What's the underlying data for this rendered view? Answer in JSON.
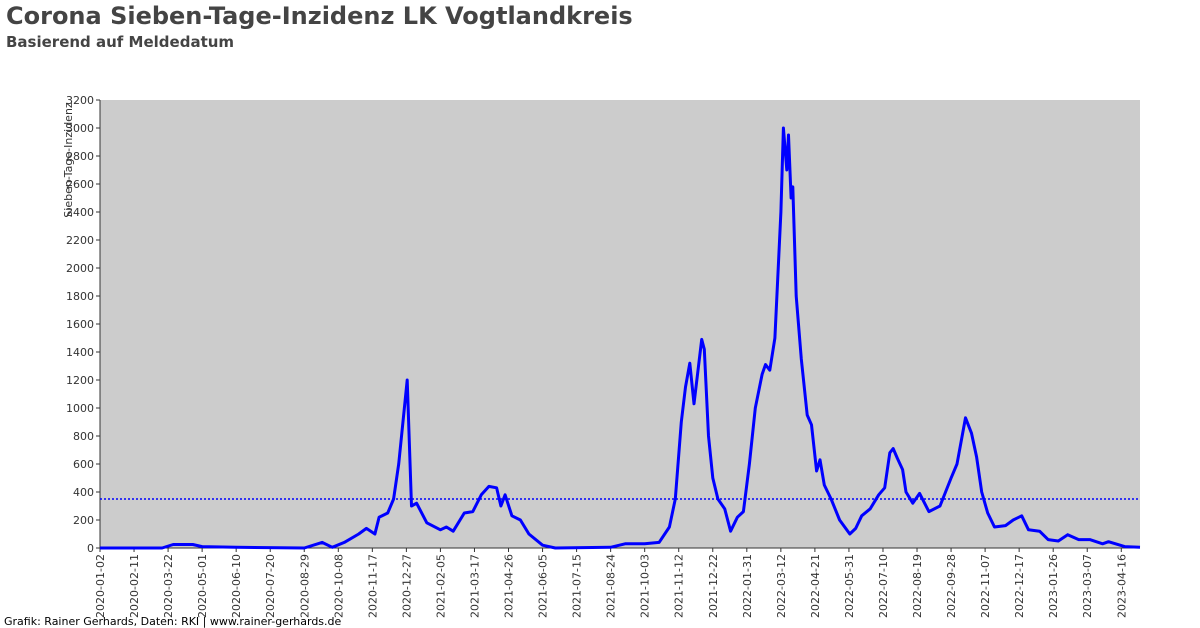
{
  "chart_data": {
    "type": "line",
    "title": "Corona Sieben-Tage-Inzidenz LK Vogtlandkreis",
    "subtitle": "Basierend auf Meldedatum",
    "y_label": "Sieben-Tage-Inzidenz",
    "footer": "Grafik: Rainer Gerhards, Daten: RKI | www.rainer-gerhards.de",
    "xlim": [
      "2020-01-02",
      "2023-05-08"
    ],
    "xticks": [
      "2020-01-02",
      "2020-02-11",
      "2020-03-22",
      "2020-05-01",
      "2020-06-10",
      "2020-07-20",
      "2020-08-29",
      "2020-10-08",
      "2020-11-17",
      "2020-12-27",
      "2021-02-05",
      "2021-03-17",
      "2021-04-26",
      "2021-06-05",
      "2021-07-15",
      "2021-08-24",
      "2021-10-03",
      "2021-11-12",
      "2021-12-22",
      "2022-01-31",
      "2022-03-12",
      "2022-04-21",
      "2022-05-31",
      "2022-07-10",
      "2022-08-19",
      "2022-09-28",
      "2022-11-07",
      "2022-12-17",
      "2023-01-26",
      "2023-03-07",
      "2023-04-16"
    ],
    "ylim": [
      0,
      3200
    ],
    "yticks": [
      0,
      200,
      400,
      600,
      800,
      1000,
      1200,
      1400,
      1600,
      1800,
      2000,
      2200,
      2400,
      2600,
      2800,
      3000,
      3200
    ],
    "threshold": 350,
    "threshold_color": "#0000ff",
    "background": "#cccccc",
    "x": [
      "2020-01-02",
      "2020-03-15",
      "2020-03-28",
      "2020-04-20",
      "2020-05-01",
      "2020-06-10",
      "2020-08-29",
      "2020-09-19",
      "2020-10-01",
      "2020-10-15",
      "2020-11-01",
      "2020-11-10",
      "2020-11-20",
      "2020-11-25",
      "2020-12-05",
      "2020-12-12",
      "2020-12-18",
      "2020-12-28",
      "2021-01-02",
      "2021-01-08",
      "2021-01-20",
      "2021-02-05",
      "2021-02-12",
      "2021-02-20",
      "2021-03-05",
      "2021-03-15",
      "2021-03-25",
      "2021-04-03",
      "2021-04-12",
      "2021-04-17",
      "2021-04-22",
      "2021-04-30",
      "2021-05-10",
      "2021-05-20",
      "2021-06-05",
      "2021-06-20",
      "2021-08-24",
      "2021-09-10",
      "2021-10-03",
      "2021-10-20",
      "2021-11-01",
      "2021-11-08",
      "2021-11-15",
      "2021-11-20",
      "2021-11-25",
      "2021-11-30",
      "2021-12-09",
      "2021-12-12",
      "2021-12-17",
      "2021-12-22",
      "2021-12-28",
      "2022-01-05",
      "2022-01-12",
      "2022-01-20",
      "2022-01-27",
      "2022-02-03",
      "2022-02-10",
      "2022-02-18",
      "2022-02-22",
      "2022-02-27",
      "2022-03-05",
      "2022-03-12",
      "2022-03-15",
      "2022-03-19",
      "2022-03-21",
      "2022-03-24",
      "2022-03-26",
      "2022-03-30",
      "2022-04-05",
      "2022-04-12",
      "2022-04-17",
      "2022-04-23",
      "2022-04-27",
      "2022-05-02",
      "2022-05-10",
      "2022-05-20",
      "2022-06-01",
      "2022-06-08",
      "2022-06-15",
      "2022-06-25",
      "2022-07-05",
      "2022-07-12",
      "2022-07-18",
      "2022-07-22",
      "2022-07-27",
      "2022-08-02",
      "2022-08-06",
      "2022-08-14",
      "2022-08-22",
      "2022-09-02",
      "2022-09-15",
      "2022-09-28",
      "2022-10-05",
      "2022-10-15",
      "2022-10-22",
      "2022-10-28",
      "2022-11-03",
      "2022-11-10",
      "2022-11-18",
      "2022-12-01",
      "2022-12-10",
      "2022-12-20",
      "2022-12-28",
      "2023-01-10",
      "2023-01-20",
      "2023-02-01",
      "2023-02-12",
      "2023-02-25",
      "2023-03-10",
      "2023-03-25",
      "2023-04-01",
      "2023-04-20",
      "2023-05-08"
    ],
    "series": [
      {
        "name": "Sieben-Tage-Inzidenz",
        "color": "#0000ff",
        "values": [
          0,
          0,
          25,
          25,
          10,
          5,
          0,
          40,
          5,
          40,
          100,
          140,
          100,
          220,
          250,
          350,
          600,
          1200,
          300,
          320,
          180,
          130,
          150,
          120,
          250,
          260,
          380,
          440,
          430,
          300,
          380,
          230,
          200,
          100,
          20,
          0,
          5,
          30,
          30,
          40,
          150,
          350,
          900,
          1150,
          1320,
          1030,
          1490,
          1420,
          800,
          500,
          350,
          280,
          120,
          220,
          260,
          600,
          1000,
          1240,
          1310,
          1270,
          1500,
          2400,
          3000,
          2700,
          2950,
          2500,
          2580,
          1800,
          1350,
          950,
          880,
          550,
          630,
          450,
          350,
          200,
          100,
          140,
          230,
          280,
          380,
          430,
          680,
          710,
          640,
          560,
          400,
          320,
          390,
          260,
          300,
          500,
          600,
          930,
          820,
          650,
          400,
          250,
          150,
          160,
          200,
          230,
          130,
          120,
          60,
          50,
          95,
          60,
          60,
          30,
          45,
          10,
          5
        ]
      }
    ]
  }
}
